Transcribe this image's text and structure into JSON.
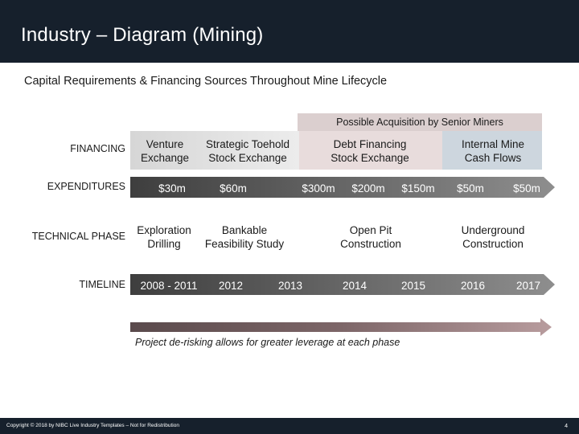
{
  "header": {
    "title": "Industry – Diagram (Mining)"
  },
  "subtitle": "Capital Requirements & Financing Sources Throughout Mine Lifecycle",
  "acquisition_label": "Possible Acquisition by Senior Miners",
  "rows": {
    "financing": "FINANCING",
    "expenditures": "EXPENDITURES",
    "technical": "TECHNICAL PHASE",
    "timeline": "TIMELINE"
  },
  "financing": {
    "venture": [
      "Venture",
      "Exchange"
    ],
    "toehold": [
      "Strategic Toehold",
      "Stock Exchange"
    ],
    "debt": [
      "Debt Financing",
      "Stock Exchange"
    ],
    "internal": [
      "Internal Mine",
      "Cash Flows"
    ]
  },
  "expenditures": [
    "$30m",
    "$60m",
    "$300m",
    "$200m",
    "$150m",
    "$50m",
    "$50m"
  ],
  "technical": {
    "exploration": [
      "Exploration",
      "Drilling"
    ],
    "feasibility": [
      "Bankable",
      "Feasibility Study"
    ],
    "openpit": [
      "Open Pit",
      "Construction"
    ],
    "underground": [
      "Underground",
      "Construction"
    ]
  },
  "timeline": [
    "2008 - 2011",
    "2012",
    "2013",
    "2014",
    "2015",
    "2016",
    "2017"
  ],
  "caption": "Project de-risking allows for greater leverage at each phase",
  "footer": {
    "copyright": "Copyright © 2018 by NIBC Live Industry Templates – Not for Redistribution",
    "page": "4"
  },
  "colors": {
    "header_bg": "#16202c",
    "gradient_start": "#5a4a4c",
    "gradient_mid": "#7d6668",
    "gradient_end": "#b89c9e",
    "acq_box": "#dbcfcf",
    "internal_box": "#cdd6de"
  }
}
